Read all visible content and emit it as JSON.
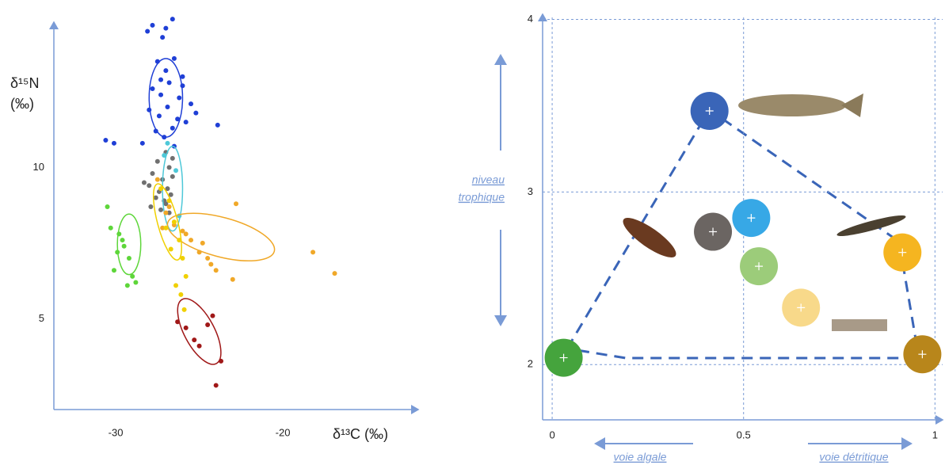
{
  "chart_data": [
    {
      "type": "scatter",
      "x_label": "δ¹³C (‰)",
      "y_label_1": "δ¹⁵N",
      "y_label_2": "(‰)",
      "xlim": [
        -33.7,
        -11.9
      ],
      "ylim": [
        2,
        14.8
      ],
      "xticks": [
        -30,
        -20
      ],
      "yticks": [
        5,
        10
      ],
      "grid": false,
      "axis_color": "#7a9bd6",
      "series": [
        {
          "color": "#1f3fd6",
          "x": [
            -28.1,
            -27.8,
            -26.6,
            -27.2,
            -27.0,
            -30.6,
            -30.1,
            -23.9,
            -27.5,
            -27.0,
            -26.5,
            -26.0,
            -27.8,
            -27.3,
            -26.8,
            -26.2,
            -25.5,
            -28.0,
            -27.4,
            -26.9,
            -26.3,
            -25.2,
            -27.6,
            -27.1,
            -26.6,
            -25.8,
            -28.4,
            -26.0,
            -27.3,
            -26.5
          ],
          "values": [
            14.5,
            14.7,
            14.9,
            14.3,
            14.6,
            10.9,
            10.8,
            11.4,
            13.5,
            13.2,
            13.6,
            13.0,
            12.6,
            12.4,
            12.8,
            12.3,
            12.1,
            11.9,
            11.7,
            12.0,
            11.6,
            11.8,
            11.2,
            11.0,
            11.3,
            11.5,
            10.8,
            12.7,
            12.9,
            10.7
          ],
          "ellipse": {
            "cx": -27.0,
            "cy": 12.3,
            "rx": 1.0,
            "ry": 1.3,
            "angle": 0
          }
        },
        {
          "color": "#707070",
          "x": [
            -27.0,
            -27.5,
            -26.8,
            -27.8,
            -27.2,
            -26.6,
            -28.0,
            -27.4,
            -26.9,
            -27.6,
            -27.1,
            -26.7,
            -28.3,
            -27.9,
            -27.3,
            -26.8,
            -26.6,
            -27.0
          ],
          "values": [
            10.5,
            10.2,
            10.0,
            9.8,
            9.6,
            9.7,
            9.4,
            9.2,
            9.3,
            9.0,
            8.9,
            9.1,
            9.5,
            8.7,
            8.6,
            8.5,
            10.3,
            8.8
          ]
        },
        {
          "color": "#4ec8d8",
          "x": [
            -26.9,
            -27.1,
            -26.4,
            -26.2
          ],
          "values": [
            10.8,
            10.4,
            9.9,
            8.4
          ],
          "ellipse": {
            "cx": -26.6,
            "cy": 9.3,
            "rx": 0.6,
            "ry": 1.4,
            "angle": 0
          }
        },
        {
          "color": "#f0a828",
          "x": [
            -27.5,
            -27.0,
            -26.5,
            -26.0,
            -25.5,
            -25.0,
            -24.5,
            -24.0,
            -23.0,
            -22.8,
            -18.2,
            -16.9,
            -26.8,
            -25.8,
            -24.8,
            -24.3,
            -27.2
          ],
          "values": [
            9.6,
            8.5,
            8.1,
            7.9,
            7.6,
            7.2,
            7.0,
            6.6,
            6.3,
            8.8,
            7.2,
            6.5,
            8.7,
            7.8,
            7.5,
            6.8,
            8.0
          ],
          "ellipse": {
            "cx": -23.7,
            "cy": 7.7,
            "rx": 3.3,
            "ry": 0.65,
            "angle": 15
          }
        },
        {
          "color": "#f0d000",
          "x": [
            -27.3,
            -26.8,
            -26.5,
            -26.2,
            -26.0,
            -25.8,
            -26.4,
            -26.1,
            -25.9,
            -27.0,
            -26.7
          ],
          "values": [
            9.3,
            8.9,
            8.2,
            7.6,
            7.0,
            6.4,
            6.1,
            5.8,
            5.3,
            8.0,
            7.3
          ],
          "ellipse": {
            "cx": -26.9,
            "cy": 8.2,
            "rx": 0.6,
            "ry": 1.3,
            "angle": -15
          }
        },
        {
          "color": "#5ed63a",
          "x": [
            -30.5,
            -30.3,
            -29.8,
            -29.5,
            -29.2,
            -29.0,
            -29.9,
            -30.1,
            -29.3,
            -28.8,
            -29.6
          ],
          "values": [
            8.7,
            8.0,
            7.8,
            7.4,
            7.0,
            6.4,
            7.2,
            6.6,
            6.1,
            6.2,
            7.6
          ],
          "ellipse": {
            "cx": -29.2,
            "cy": 7.46,
            "rx": 0.7,
            "ry": 1.0,
            "angle": 0
          }
        },
        {
          "color": "#a01818",
          "x": [
            -26.3,
            -25.8,
            -25.3,
            -24.2,
            -23.7,
            -24.0,
            -25.0,
            -24.5
          ],
          "values": [
            4.9,
            4.7,
            4.3,
            5.1,
            3.6,
            2.8,
            4.1,
            4.8
          ],
          "ellipse": {
            "cx": -25.0,
            "cy": 4.58,
            "rx": 0.9,
            "ry": 1.2,
            "angle": -28
          }
        }
      ]
    },
    {
      "type": "bubble",
      "xlim": [
        -0.025,
        1.02
      ],
      "ylim": [
        1.68,
        4.03
      ],
      "xticks": [
        0,
        0.5,
        1
      ],
      "yticks": [
        2,
        3,
        4
      ],
      "grid": true,
      "axis_color": "#7a9bd6",
      "y_note_1": "niveau",
      "y_note_2": "trophique",
      "x_note_left": "voie algale",
      "x_note_right": "voie détritique",
      "series": [
        {
          "color": "#3a65b8",
          "x": [
            0.411
          ],
          "values": [
            3.47
          ]
        },
        {
          "color": "#6b6562",
          "x": [
            0.42
          ],
          "values": [
            2.77
          ]
        },
        {
          "color": "#37a8e6",
          "x": [
            0.52
          ],
          "values": [
            2.85
          ]
        },
        {
          "color": "#9ccc7a",
          "x": [
            0.54
          ],
          "values": [
            2.57
          ]
        },
        {
          "color": "#f8d98a",
          "x": [
            0.65
          ],
          "values": [
            2.33
          ]
        },
        {
          "color": "#f5b520",
          "x": [
            0.915
          ],
          "values": [
            2.65
          ]
        },
        {
          "color": "#b8861b",
          "x": [
            0.967
          ],
          "values": [
            2.06
          ]
        },
        {
          "color": "#45a43d",
          "x": [
            0.03
          ],
          "values": [
            2.04
          ]
        }
      ]
    }
  ]
}
